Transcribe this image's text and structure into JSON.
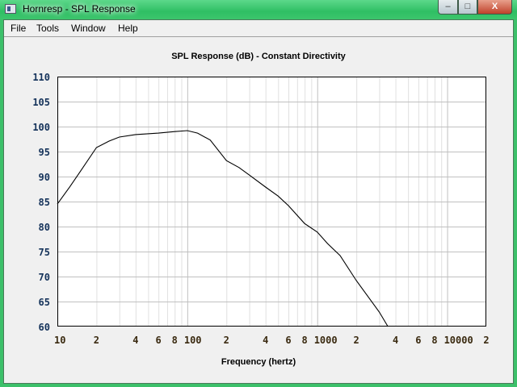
{
  "window": {
    "title": "Hornresp - SPL Response",
    "controls": {
      "minimize": "–",
      "maximize": "□",
      "close": "X"
    }
  },
  "menu": [
    {
      "label": "File"
    },
    {
      "label": "Tools"
    },
    {
      "label": "Window"
    },
    {
      "label": "Help"
    }
  ],
  "chart_data": {
    "type": "line",
    "title": "SPL Response (dB) - Constant Directivity",
    "xlabel": "Frequency (hertz)",
    "ylabel": "",
    "xscale": "log",
    "xlim": [
      10,
      20000
    ],
    "ylim": [
      60,
      110
    ],
    "grid": true,
    "yticks": [
      60,
      65,
      70,
      75,
      80,
      85,
      90,
      95,
      100,
      105,
      110
    ],
    "xtick_labels": [
      {
        "value": 10,
        "label": "10"
      },
      {
        "value": 20,
        "label": "2"
      },
      {
        "value": 40,
        "label": "4"
      },
      {
        "value": 60,
        "label": "6"
      },
      {
        "value": 80,
        "label": "8"
      },
      {
        "value": 100,
        "label": "100"
      },
      {
        "value": 200,
        "label": "2"
      },
      {
        "value": 400,
        "label": "4"
      },
      {
        "value": 600,
        "label": "6"
      },
      {
        "value": 800,
        "label": "8"
      },
      {
        "value": 1000,
        "label": "1000"
      },
      {
        "value": 2000,
        "label": "2"
      },
      {
        "value": 4000,
        "label": "4"
      },
      {
        "value": 6000,
        "label": "6"
      },
      {
        "value": 8000,
        "label": "8"
      },
      {
        "value": 10000,
        "label": "10000"
      },
      {
        "value": 20000,
        "label": "2"
      }
    ],
    "colors": {
      "line": "#000000",
      "grid_major": "#c0c0c0",
      "grid_minor": "#e0e0e0"
    },
    "series": [
      {
        "x": [
          10,
          12.5,
          15,
          20,
          25,
          30,
          40,
          60,
          80,
          100,
          120,
          150,
          200,
          250,
          300,
          400,
          500,
          600,
          800,
          1000,
          1200,
          1500,
          2000,
          3000,
          3500
        ],
        "y": [
          84.5,
          88,
          91,
          95.8,
          97.1,
          97.9,
          98.4,
          98.7,
          99.0,
          99.2,
          98.7,
          97.3,
          93.2,
          91.8,
          90.3,
          87.9,
          86.1,
          84.2,
          80.6,
          78.9,
          76.6,
          74.2,
          69.2,
          62.9,
          60
        ]
      }
    ]
  }
}
